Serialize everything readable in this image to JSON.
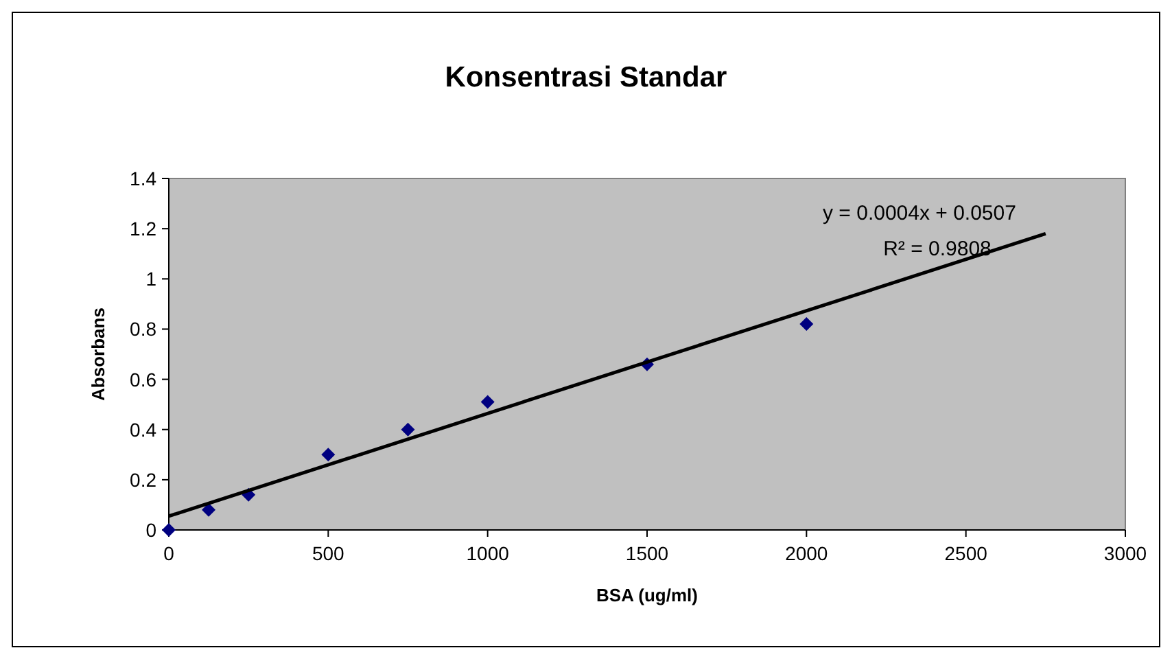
{
  "chart_data": {
    "type": "scatter",
    "title": "Konsentrasi Standar",
    "xlabel": "BSA (ug/ml)",
    "ylabel": "Absorbans",
    "xlim": [
      0,
      3000
    ],
    "xticks": [
      0,
      500,
      1000,
      1500,
      2000,
      2500,
      3000
    ],
    "ylim": [
      0,
      1.4
    ],
    "yticks": [
      0,
      0.2,
      0.4,
      0.6,
      0.8,
      1,
      1.2,
      1.4
    ],
    "grid": false,
    "marker": "diamond",
    "annotations": [
      "y = 0.0004x + 0.0507",
      "R² = 0.9808"
    ],
    "series": [
      {
        "color": "#000080",
        "x": [
          0,
          125,
          250,
          500,
          750,
          1000,
          1500,
          2000
        ],
        "values": [
          0,
          0.08,
          0.14,
          0.3,
          0.4,
          0.51,
          0.66,
          0.82
        ]
      },
      {
        "type": "line",
        "color": "#000000",
        "x": [
          0,
          2750
        ],
        "values": [
          0.055,
          1.18
        ],
        "marker": "none",
        "line_style": "solid"
      }
    ]
  }
}
